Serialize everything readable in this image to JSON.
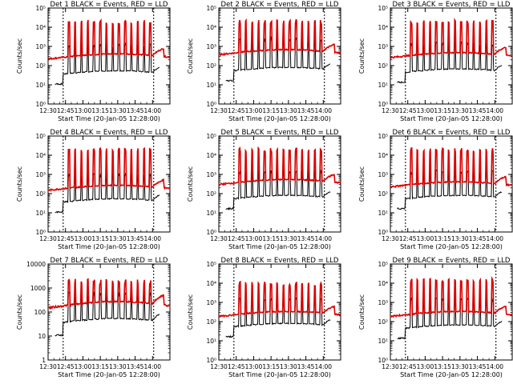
{
  "chart_data": [
    {
      "panel": 1,
      "type": "line",
      "title": "Det 1 BLACK = Events, RED = LLD",
      "xlabel": "Start Time (20-Jan-05 12:28:00)",
      "ylabel": "Counts/sec",
      "yscale": "log",
      "ylim": [
        1,
        100000
      ],
      "ytick_labels": [
        "10⁰",
        "10¹",
        "10²",
        "10³",
        "10⁴",
        "10⁵"
      ],
      "xtick_labels": [
        "12:30",
        "12:45",
        "13:00",
        "13:15",
        "13:30",
        "13:45",
        "14:00"
      ],
      "series": [
        {
          "name": "Events",
          "color": "#000000",
          "baseline": 40,
          "spike": 1200
        },
        {
          "name": "LLD",
          "color": "#dd0000",
          "baseline": 300,
          "spike": 20000
        }
      ]
    },
    {
      "panel": 2,
      "type": "line",
      "title": "Det 2 BLACK = Events, RED = LLD",
      "xlabel": "Start Time (20-Jan-05 12:28:00)",
      "ylabel": "Counts/sec",
      "yscale": "log",
      "ylim": [
        1,
        100000
      ],
      "ytick_labels": [
        "10⁰",
        "10¹",
        "10²",
        "10³",
        "10⁴",
        "10⁵"
      ],
      "xtick_labels": [
        "12:30",
        "12:45",
        "13:00",
        "13:15",
        "13:30",
        "13:45",
        "14:00"
      ],
      "series": [
        {
          "name": "Events",
          "color": "#000000",
          "baseline": 60,
          "spike": 2500
        },
        {
          "name": "LLD",
          "color": "#dd0000",
          "baseline": 500,
          "spike": 20000
        }
      ]
    },
    {
      "panel": 3,
      "type": "line",
      "title": "Det 3 BLACK = Events, RED = LLD",
      "xlabel": "Start Time (20-Jan-05 12:28:00)",
      "ylabel": "Counts/sec",
      "yscale": "log",
      "ylim": [
        1,
        100000
      ],
      "ytick_labels": [
        "10⁰",
        "10¹",
        "10²",
        "10³",
        "10⁴",
        "10⁵"
      ],
      "xtick_labels": [
        "12:30",
        "12:45",
        "13:00",
        "13:15",
        "13:30",
        "13:45",
        "14:00"
      ],
      "series": [
        {
          "name": "Events",
          "color": "#000000",
          "baseline": 50,
          "spike": 1500
        },
        {
          "name": "LLD",
          "color": "#dd0000",
          "baseline": 350,
          "spike": 20000
        }
      ]
    },
    {
      "panel": 4,
      "type": "line",
      "title": "Det 4 BLACK = Events, RED = LLD",
      "xlabel": "Start Time (20-Jan-05 12:28:00)",
      "ylabel": "Counts/sec",
      "yscale": "log",
      "ylim": [
        1,
        100000
      ],
      "ytick_labels": [
        "10⁰",
        "10¹",
        "10²",
        "10³",
        "10⁴",
        "10⁵"
      ],
      "xtick_labels": [
        "12:30",
        "12:45",
        "13:00",
        "13:15",
        "13:30",
        "13:45",
        "14:00"
      ],
      "series": [
        {
          "name": "Events",
          "color": "#000000",
          "baseline": 40,
          "spike": 1000
        },
        {
          "name": "LLD",
          "color": "#dd0000",
          "baseline": 200,
          "spike": 20000
        }
      ]
    },
    {
      "panel": 5,
      "type": "line",
      "title": "Det 5 BLACK = Events, RED = LLD",
      "xlabel": "Start Time (20-Jan-05 12:28:00)",
      "ylabel": "Counts/sec",
      "yscale": "log",
      "ylim": [
        1,
        100000
      ],
      "ytick_labels": [
        "10⁰",
        "10¹",
        "10²",
        "10³",
        "10⁴",
        "10⁵"
      ],
      "xtick_labels": [
        "12:30",
        "12:45",
        "13:00",
        "13:15",
        "13:30",
        "13:45",
        "14:00"
      ],
      "series": [
        {
          "name": "Events",
          "color": "#000000",
          "baseline": 60,
          "spike": 1500
        },
        {
          "name": "LLD",
          "color": "#dd0000",
          "baseline": 400,
          "spike": 20000
        }
      ]
    },
    {
      "panel": 6,
      "type": "line",
      "title": "Det 6 BLACK = Events, RED = LLD",
      "xlabel": "Start Time (20-Jan-05 12:28:00)",
      "ylabel": "Counts/sec",
      "yscale": "log",
      "ylim": [
        1,
        100000
      ],
      "ytick_labels": [
        "10⁰",
        "10¹",
        "10²",
        "10³",
        "10⁴",
        "10⁵"
      ],
      "xtick_labels": [
        "12:30",
        "12:45",
        "13:00",
        "13:15",
        "13:30",
        "13:45",
        "14:00"
      ],
      "series": [
        {
          "name": "Events",
          "color": "#000000",
          "baseline": 60,
          "spike": 1500
        },
        {
          "name": "LLD",
          "color": "#dd0000",
          "baseline": 300,
          "spike": 20000
        }
      ]
    },
    {
      "panel": 7,
      "type": "line",
      "title": "Det 7 BLACK = Events, RED = LLD",
      "xlabel": "Start Time (20-Jan-05 12:28:00)",
      "ylabel": "Counts/sec",
      "yscale": "log",
      "ylim": [
        1,
        10000
      ],
      "ytick_labels": [
        "1",
        "10",
        "100",
        "1000",
        "10000"
      ],
      "xtick_labels": [
        "12:30",
        "12:45",
        "13:00",
        "13:15",
        "13:30",
        "13:45",
        "14:00"
      ],
      "series": [
        {
          "name": "Events",
          "color": "#000000",
          "baseline": 40,
          "spike": 600
        },
        {
          "name": "LLD",
          "color": "#dd0000",
          "baseline": 200,
          "spike": 2000
        }
      ]
    },
    {
      "panel": 8,
      "type": "line",
      "title": "Det 8 BLACK = Events, RED = LLD",
      "xlabel": "Start Time (20-Jan-05 12:28:00)",
      "ylabel": "Counts/sec",
      "yscale": "log",
      "ylim": [
        1,
        100000
      ],
      "ytick_labels": [
        "10⁰",
        "10¹",
        "10²",
        "10³",
        "10⁴",
        "10⁵"
      ],
      "xtick_labels": [
        "12:30",
        "12:45",
        "13:00",
        "13:15",
        "13:30",
        "13:45",
        "14:00"
      ],
      "series": [
        {
          "name": "Events",
          "color": "#000000",
          "baseline": 60,
          "spike": 1500
        },
        {
          "name": "LLD",
          "color": "#dd0000",
          "baseline": 250,
          "spike": 10000
        }
      ]
    },
    {
      "panel": 9,
      "type": "line",
      "title": "Det 9 BLACK = Events, RED = LLD",
      "xlabel": "Start Time (20-Jan-05 12:28:00)",
      "ylabel": "Counts/sec",
      "yscale": "log",
      "ylim": [
        1,
        100000
      ],
      "ytick_labels": [
        "10⁰",
        "10¹",
        "10²",
        "10³",
        "10⁴",
        "10⁵"
      ],
      "xtick_labels": [
        "12:30",
        "12:45",
        "13:00",
        "13:15",
        "13:30",
        "13:45",
        "14:00"
      ],
      "series": [
        {
          "name": "Events",
          "color": "#000000",
          "baseline": 50,
          "spike": 1500
        },
        {
          "name": "LLD",
          "color": "#dd0000",
          "baseline": 250,
          "spike": 15000
        }
      ]
    }
  ],
  "time_axis": {
    "start_minutes": 0,
    "end_minutes": 105,
    "dashed_lines_minutes": [
      13,
      91
    ],
    "spike_count": 14
  }
}
